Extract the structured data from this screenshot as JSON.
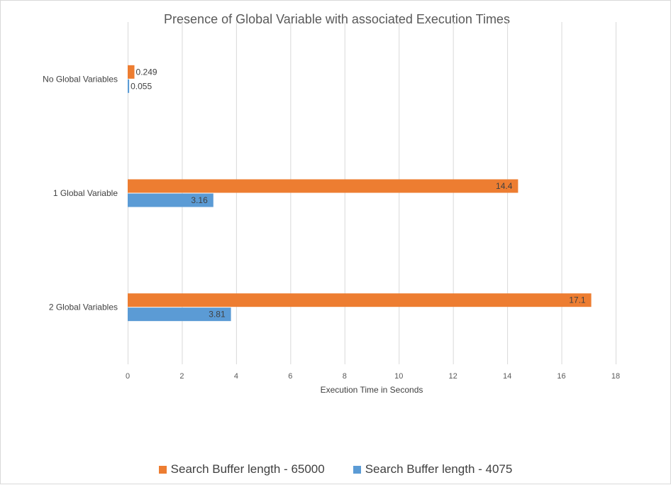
{
  "chart_data": {
    "type": "bar",
    "orientation": "horizontal",
    "title": "Presence of Global Variable with associated Execution Times",
    "xlabel": "Execution Time in Seconds",
    "ylabel": "",
    "categories": [
      "No Global Variables",
      "1 Global Variable",
      "2 Global Variables"
    ],
    "series": [
      {
        "name": "Search Buffer length - 65000",
        "color": "#ED7D31",
        "values": [
          0.249,
          14.4,
          17.1
        ],
        "labels": [
          "0.249",
          "14.4",
          "17.1"
        ]
      },
      {
        "name": "Search Buffer length - 4075",
        "color": "#5B9BD5",
        "values": [
          0.055,
          3.16,
          3.81
        ],
        "labels": [
          "0.055",
          "3.16",
          "3.81"
        ]
      }
    ],
    "xlim": [
      0,
      18
    ],
    "xticks": [
      0,
      2,
      4,
      6,
      8,
      10,
      12,
      14,
      16,
      18
    ],
    "grid": true,
    "legend": "bottom"
  }
}
